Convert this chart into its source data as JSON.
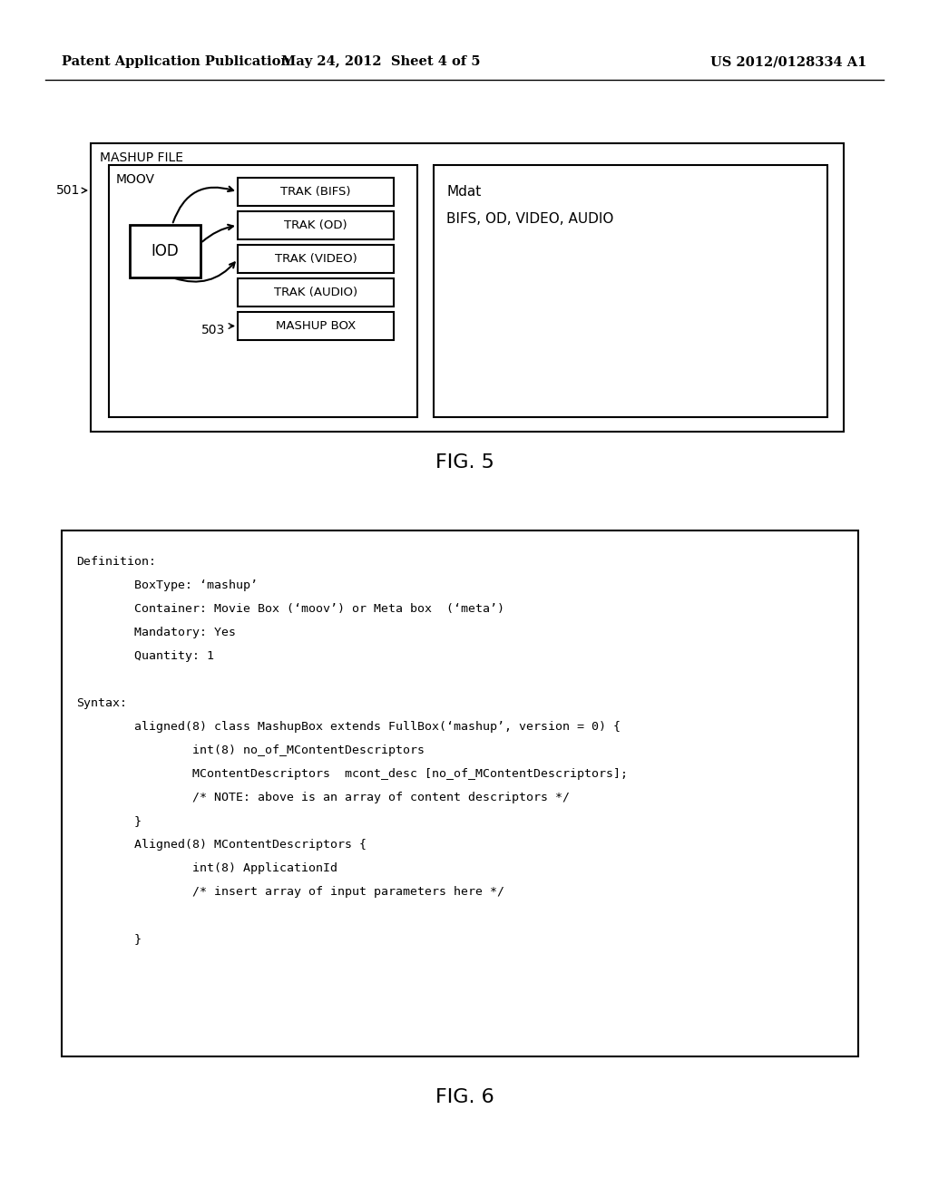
{
  "header_left": "Patent Application Publication",
  "header_center": "May 24, 2012  Sheet 4 of 5",
  "header_right": "US 2012/0128334 A1",
  "fig5_label": "FIG. 5",
  "fig6_label": "FIG. 6",
  "fig5_title": "MASHUP FILE",
  "fig5_moov_label": "MOOV",
  "fig5_iod_label": "IOD",
  "fig5_trak_labels": [
    "TRAK (BIFS)",
    "TRAK (OD)",
    "TRAK (VIDEO)",
    "TRAK (AUDIO)",
    "MASHUP BOX"
  ],
  "fig5_mdat_label": "Mdat",
  "fig5_mdat_content": "BIFS, OD, VIDEO, AUDIO",
  "fig5_label_501": "501",
  "fig5_label_503": "503",
  "fig6_text_lines": [
    "Definition:",
    "        BoxType: ‘mashup’",
    "        Container: Movie Box (‘moov’) or Meta box  (‘meta’)",
    "        Mandatory: Yes",
    "        Quantity: 1",
    "",
    "Syntax:",
    "        aligned(8) class MashupBox extends FullBox(‘mashup’, version = 0) {",
    "                int(8) no_of_MContentDescriptors",
    "                MContentDescriptors  mcont_desc [no_of_MContentDescriptors];",
    "                /* NOTE: above is an array of content descriptors */",
    "        }",
    "        Aligned(8) MContentDescriptors {",
    "                int(8) ApplicationId",
    "                /* insert array of input parameters here */",
    "",
    "        }"
  ],
  "bg_color": "#ffffff",
  "box_color": "#000000",
  "text_color": "#000000"
}
